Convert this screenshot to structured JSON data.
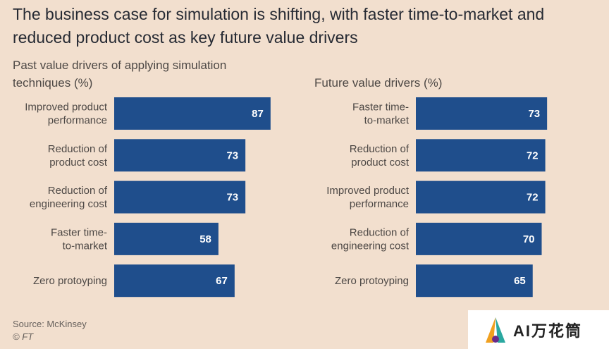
{
  "title": "The business case for simulation is shifting, with faster time-to-market and reduced product cost as key future value drivers",
  "source": "Source: McKinsey",
  "credit": "© FT",
  "watermark": "AI万花筒",
  "colors": {
    "bar": "#1f4e8c",
    "background": "#f2dfce"
  },
  "chart_data": [
    {
      "type": "bar",
      "orientation": "horizontal",
      "title": "Past value drivers of applying simulation techniques (%)",
      "categories": [
        [
          "Improved product",
          "performance"
        ],
        [
          "Reduction of",
          "product cost"
        ],
        [
          "Reduction of",
          "engineering cost"
        ],
        [
          "Faster time-",
          "to-market"
        ],
        [
          "Zero protoyping"
        ]
      ],
      "values": [
        87,
        73,
        73,
        58,
        67
      ],
      "xlim": [
        0,
        100
      ],
      "grid": false
    },
    {
      "type": "bar",
      "orientation": "horizontal",
      "title": "Future value drivers (%)",
      "categories": [
        [
          "Faster time-",
          "to-market"
        ],
        [
          "Reduction of",
          "product cost"
        ],
        [
          "Improved product",
          "performance"
        ],
        [
          "Reduction of",
          "engineering cost"
        ],
        [
          "Zero protoyping"
        ]
      ],
      "values": [
        73,
        72,
        72,
        70,
        65
      ],
      "xlim": [
        0,
        100
      ],
      "grid": false
    }
  ]
}
